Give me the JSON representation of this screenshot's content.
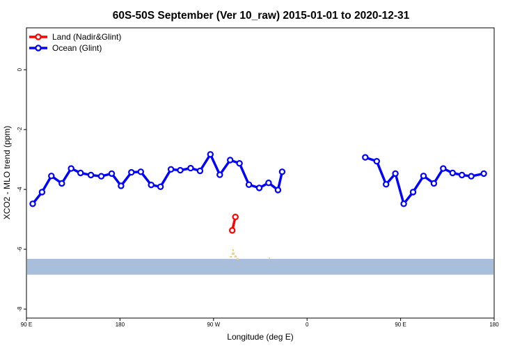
{
  "chart_data": {
    "type": "line",
    "title": "60S-50S September (Ver 10_raw)   2015-01-01 to 2020-12-31",
    "xlabel": "Longitude (deg E)",
    "ylabel": "XCO2 - MLO trend (ppm)",
    "xlim": [
      90,
      540
    ],
    "ylim": [
      -8.3,
      1.4
    ],
    "x_ticks": [
      {
        "value": 90,
        "label": "90 E"
      },
      {
        "value": 180,
        "label": "180"
      },
      {
        "value": 270,
        "label": "90 W"
      },
      {
        "value": 360,
        "label": "0"
      },
      {
        "value": 450,
        "label": "90 E"
      },
      {
        "value": 540,
        "label": "180"
      }
    ],
    "y_ticks": [
      {
        "value": 0,
        "label": "0"
      },
      {
        "value": -2,
        "label": "-2"
      },
      {
        "value": -4,
        "label": "-4"
      },
      {
        "value": -6,
        "label": "-6"
      },
      {
        "value": -8,
        "label": "-8"
      }
    ],
    "legend": {
      "position": "top-left"
    },
    "series": [
      {
        "name": "Land (Nadir&Glint)",
        "color": "#ff0000",
        "points": [
          [
            288,
            -5.37
          ],
          [
            291,
            -4.92
          ]
        ]
      },
      {
        "name": "Ocean (Glint)",
        "color": "#0000ff",
        "segments": [
          [
            [
              96,
              -4.48
            ],
            [
              105,
              -4.09
            ],
            [
              114,
              -3.55
            ],
            [
              124,
              -3.8
            ],
            [
              133,
              -3.3
            ],
            [
              142,
              -3.45
            ],
            [
              152,
              -3.52
            ],
            [
              162,
              -3.56
            ],
            [
              172,
              -3.47
            ],
            [
              181,
              -3.88
            ],
            [
              191,
              -3.43
            ],
            [
              200,
              -3.41
            ],
            [
              210,
              -3.85
            ],
            [
              219,
              -3.91
            ],
            [
              229,
              -3.33
            ],
            [
              238,
              -3.36
            ],
            [
              248,
              -3.29
            ],
            [
              257,
              -3.38
            ],
            [
              267,
              -2.83
            ],
            [
              276,
              -3.51
            ],
            [
              286,
              -3.02
            ],
            [
              295,
              -3.13
            ],
            [
              304,
              -3.84
            ],
            [
              314,
              -3.95
            ],
            [
              323,
              -3.78
            ],
            [
              332,
              -4.02
            ],
            [
              336,
              -3.41
            ]
          ],
          [
            [
              416,
              -2.93
            ],
            [
              427,
              -3.06
            ],
            [
              436,
              -3.83
            ],
            [
              445,
              -3.47
            ],
            [
              453,
              -4.48
            ],
            [
              462,
              -4.09
            ],
            [
              472,
              -3.55
            ],
            [
              482,
              -3.8
            ],
            [
              491,
              -3.3
            ],
            [
              500,
              -3.45
            ],
            [
              509,
              -3.52
            ],
            [
              518,
              -3.56
            ],
            [
              530,
              -3.47
            ]
          ]
        ]
      }
    ],
    "background_band": {
      "y_range": [
        -6.85,
        -6.32
      ],
      "color": "#a9bedb"
    },
    "land_fill_color": "#f5d27a"
  }
}
